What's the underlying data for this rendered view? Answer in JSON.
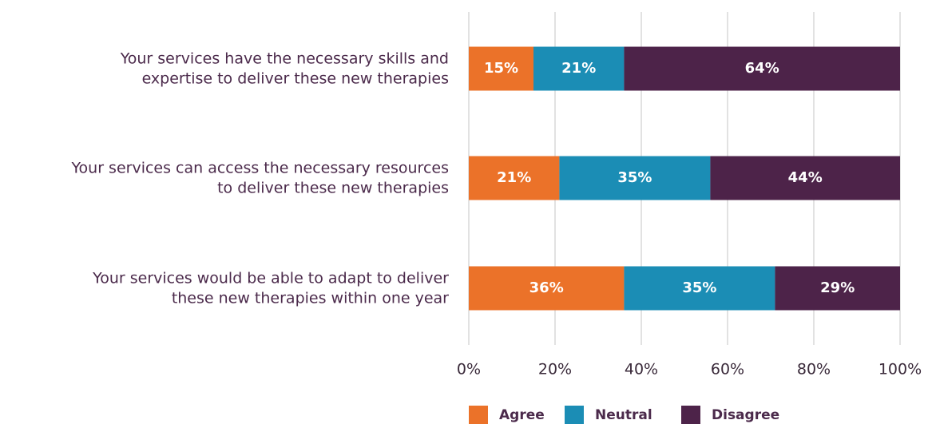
{
  "chart_data": {
    "type": "stacked_barh",
    "categories": [
      [
        "Your services have the necessary skills and",
        "expertise to deliver these new therapies"
      ],
      [
        "Your services can access the necessary resources",
        "to deliver these new therapies"
      ],
      [
        "Your services would be able to adapt to deliver",
        "these new therapies within one year"
      ]
    ],
    "series": [
      {
        "name": "Agree",
        "color": "#eb7229",
        "values": [
          15,
          21,
          36
        ],
        "value_labels": [
          "15%",
          "21%",
          "36%"
        ]
      },
      {
        "name": "Neutral",
        "color": "#1b8db5",
        "values": [
          21,
          35,
          35
        ],
        "value_labels": [
          "21%",
          "35%",
          "35%"
        ]
      },
      {
        "name": "Disagree",
        "color": "#4d2349",
        "values": [
          64,
          44,
          29
        ],
        "value_labels": [
          "64%",
          "44%",
          "29%"
        ]
      }
    ],
    "xlim": [
      0,
      100
    ],
    "xticks": [
      {
        "value": 0,
        "label": "0%"
      },
      {
        "value": 20,
        "label": "20%"
      },
      {
        "value": 40,
        "label": "40%"
      },
      {
        "value": 60,
        "label": "60%"
      },
      {
        "value": 80,
        "label": "80%"
      },
      {
        "value": 100,
        "label": "100%"
      }
    ],
    "grid": true,
    "legend": "bottom"
  }
}
